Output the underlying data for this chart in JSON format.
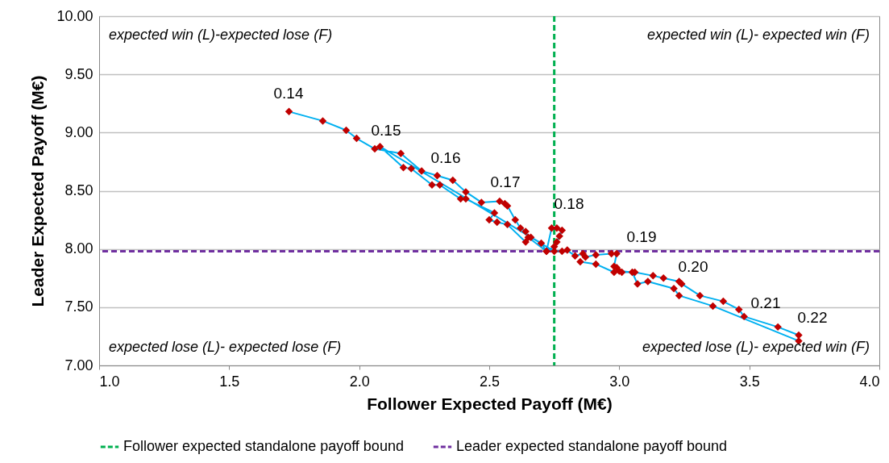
{
  "chart_data": {
    "type": "line",
    "xlabel": "Follower Expected Payoff (M€)",
    "ylabel": "Leader Expected Payoff (M€)",
    "xlim": [
      1,
      4
    ],
    "ylim": [
      7,
      10
    ],
    "xticks": [
      {
        "value": 1,
        "label": "1.0"
      },
      {
        "value": 1.5,
        "label": "1.5"
      },
      {
        "value": 2,
        "label": "2.0"
      },
      {
        "value": 2.5,
        "label": "2.5"
      },
      {
        "value": 3,
        "label": "3.0"
      },
      {
        "value": 3.5,
        "label": "3.5"
      },
      {
        "value": 4,
        "label": "4.0"
      }
    ],
    "yticks": [
      {
        "value": 7,
        "label": "7.00"
      },
      {
        "value": 7.5,
        "label": "7.50"
      },
      {
        "value": 8,
        "label": "8.00"
      },
      {
        "value": 8.5,
        "label": "8.50"
      },
      {
        "value": 9,
        "label": "9.00"
      },
      {
        "value": 9.5,
        "label": "9.50"
      },
      {
        "value": 10,
        "label": "10.00"
      }
    ],
    "grid": "y",
    "marker": "diamond",
    "legend": "bottom",
    "series": [
      {
        "color": "#00b0f0",
        "x": [
          1.73,
          1.86,
          1.95,
          1.99,
          2.06,
          2.16,
          2.24,
          2.3,
          2.36,
          2.41,
          2.47,
          2.54,
          2.56,
          2.57,
          2.6,
          2.62,
          2.64,
          2.65,
          2.72,
          2.75,
          2.76,
          2.77,
          2.78,
          2.76,
          2.74,
          2.72,
          2.7,
          2.66,
          2.64,
          2.57,
          2.53,
          2.5,
          2.52,
          2.41,
          2.39,
          2.31,
          2.28,
          2.2,
          2.17,
          2.08,
          2.75,
          2.78,
          2.8,
          2.83,
          2.86,
          2.87,
          2.91,
          2.97,
          2.99,
          2.98,
          2.99,
          3.01,
          3.06,
          3.13,
          3.17,
          3.23,
          3.24,
          3.31,
          3.4,
          3.46,
          3.48,
          3.61,
          3.69,
          3.69,
          3.36,
          3.23,
          3.21,
          3.11,
          3.07,
          3.05,
          3.0,
          2.98,
          2.91,
          2.85
        ],
        "values": [
          9.18,
          9.1,
          9.02,
          8.95,
          8.86,
          8.82,
          8.67,
          8.63,
          8.59,
          8.49,
          8.4,
          8.41,
          8.39,
          8.37,
          8.25,
          8.18,
          8.15,
          8.1,
          7.98,
          8.02,
          8.06,
          8.11,
          8.16,
          8.18,
          8.18,
          7.98,
          8.05,
          8.1,
          8.06,
          8.21,
          8.23,
          8.25,
          8.31,
          8.43,
          8.43,
          8.55,
          8.55,
          8.69,
          8.7,
          8.88,
          7.98,
          7.98,
          7.99,
          7.94,
          7.96,
          7.93,
          7.95,
          7.96,
          7.96,
          7.85,
          7.84,
          7.8,
          7.8,
          7.77,
          7.75,
          7.72,
          7.7,
          7.6,
          7.55,
          7.48,
          7.42,
          7.33,
          7.26,
          7.21,
          7.51,
          7.6,
          7.66,
          7.72,
          7.7,
          7.8,
          7.81,
          7.8,
          7.87,
          7.89
        ]
      }
    ],
    "ref_lines": [
      {
        "axis": "x",
        "value": 2.75,
        "label": "Follower expected standalone payoff bound",
        "color": "#00b050",
        "line_style": "dashed"
      },
      {
        "axis": "y",
        "value": 7.98,
        "label": "Leader expected standalone payoff bound",
        "color": "#7030a0",
        "line_style": "dashed"
      }
    ],
    "annotations": [
      "expected win (L)-expected lose (F)",
      "expected win (L)- expected win (F)",
      "expected lose (L)- expected lose (F)",
      "expected lose (L)- expected win (F)",
      "0.14",
      "0.15",
      "0.16",
      "0.17",
      "0.18",
      "0.19",
      "0.20",
      "0.21",
      "0.22"
    ]
  }
}
